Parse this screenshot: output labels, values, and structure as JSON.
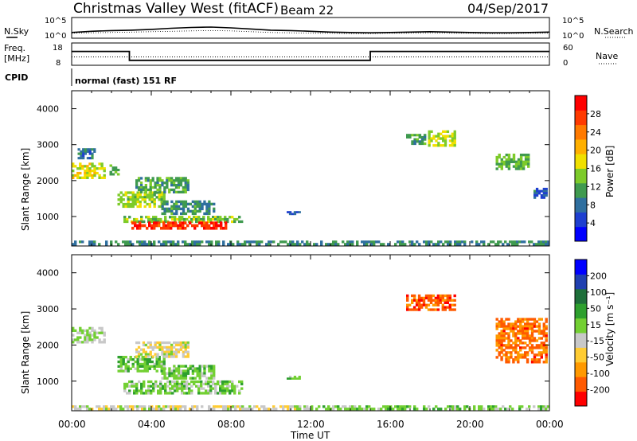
{
  "header": {
    "station": "Christmas Valley West (fitACF)",
    "beam": "Beam 22",
    "date": "04/Sep/2017"
  },
  "side_labels": {
    "nsky": "N.Sky",
    "nsearch": "N.Search",
    "freq_line1": "Freq.",
    "freq_line2": "[MHz]",
    "nave": "Nave",
    "cpid": "CPID",
    "cpid_value": "normal (fast) 151 RF"
  },
  "strip_ticks": {
    "noise_left": [
      "10^5",
      "10^0"
    ],
    "noise_right": [
      "10^5",
      "10^0"
    ],
    "freq_left": [
      "18",
      "8"
    ],
    "nave_right": [
      "60",
      "0"
    ]
  },
  "colors": {
    "power_scale": [
      "#0000ff",
      "#1e3fd0",
      "#2f6f9f",
      "#3f9a4f",
      "#7dcb2a",
      "#f0e000",
      "#ffb000",
      "#ff7a00",
      "#ff3a00",
      "#ff0000"
    ],
    "velocity_scale": [
      "#ff0000",
      "#ff5a00",
      "#ff9900",
      "#ffcc33",
      "#c8c8c8",
      "#73d033",
      "#2ea02e",
      "#1e6f3a",
      "#2040b0",
      "#0000ff"
    ]
  },
  "chart_data": [
    {
      "type": "line",
      "title": "N.Sky",
      "x": [
        0,
        1,
        2,
        3,
        4,
        5,
        6,
        7,
        8,
        9,
        10,
        11,
        12,
        13,
        14,
        15,
        16,
        17,
        18,
        19,
        20,
        21,
        22,
        23,
        24
      ],
      "series": [
        {
          "name": "N.Sky",
          "values": [
            1.3,
            1.6,
            1.8,
            1.9,
            2.1,
            2.4,
            2.6,
            2.7,
            2.5,
            2.2,
            1.9,
            1.8,
            1.6,
            1.4,
            1.3,
            1.2,
            1.3,
            1.4,
            1.5,
            1.4,
            1.3,
            1.2,
            1.2,
            1.3,
            1.4
          ]
        },
        {
          "name": "N.Search",
          "values": [
            1.1,
            1.2,
            1.3,
            1.4,
            1.5,
            1.6,
            1.7,
            1.8,
            1.7,
            1.5,
            1.3,
            1.2,
            1.1,
            1.1,
            1.0,
            1.0,
            1.1,
            1.1,
            1.2,
            1.1,
            1.1,
            1.0,
            1.0,
            1.1,
            1.1
          ]
        }
      ],
      "ylabel": "",
      "ylim": [
        0,
        5
      ]
    },
    {
      "type": "line",
      "title": "Freq. [MHz] / Nave",
      "x": [
        0,
        2.9,
        2.9,
        15.0,
        15.0,
        24
      ],
      "series": [
        {
          "name": "Freq.",
          "values": [
            14.3,
            14.3,
            10.0,
            10.0,
            14.3,
            14.3
          ]
        },
        {
          "name": "Nave",
          "values": [
            22,
            22,
            22,
            22,
            22,
            22
          ]
        }
      ],
      "ylim": [
        8,
        18
      ]
    },
    {
      "type": "heatmap",
      "title": "Power",
      "xlabel": "",
      "ylabel": "Slant Range [km]",
      "xlim": [
        0,
        24
      ],
      "ylim": [
        180,
        4500
      ],
      "x_ticks": [
        "00:00",
        "04:00",
        "08:00",
        "12:00",
        "16:00",
        "20:00",
        "00:00"
      ],
      "y_ticks": [
        "1000",
        "2000",
        "3000",
        "4000"
      ],
      "colorbar_label": "Power [dB]",
      "colorbar_ticks": [
        "4",
        "8",
        "12",
        "16",
        "20",
        "24",
        "28"
      ],
      "colorbar_range": [
        0,
        30
      ],
      "blobs": [
        {
          "t0": 0.0,
          "t1": 1.7,
          "r0": 2050,
          "r1": 2500,
          "v": 16
        },
        {
          "t0": 0.3,
          "t1": 1.2,
          "r0": 2600,
          "r1": 2900,
          "v": 8
        },
        {
          "t0": 1.9,
          "t1": 2.4,
          "r0": 2150,
          "r1": 2450,
          "v": 12
        },
        {
          "t0": 2.3,
          "t1": 4.7,
          "r0": 1250,
          "r1": 1700,
          "v": 14
        },
        {
          "t0": 3.2,
          "t1": 5.9,
          "r0": 1650,
          "r1": 2100,
          "v": 11
        },
        {
          "t0": 4.5,
          "t1": 7.2,
          "r0": 1050,
          "r1": 1450,
          "v": 10
        },
        {
          "t0": 2.6,
          "t1": 8.6,
          "r0": 830,
          "r1": 1020,
          "v": 13
        },
        {
          "t0": 3.0,
          "t1": 7.8,
          "r0": 640,
          "r1": 860,
          "v": 26
        },
        {
          "t0": 10.8,
          "t1": 11.5,
          "r0": 1050,
          "r1": 1150,
          "v": 6
        },
        {
          "t0": 16.8,
          "t1": 17.8,
          "r0": 3000,
          "r1": 3300,
          "v": 11
        },
        {
          "t0": 17.9,
          "t1": 19.3,
          "r0": 2950,
          "r1": 3400,
          "v": 15
        },
        {
          "t0": 21.3,
          "t1": 23.0,
          "r0": 2300,
          "r1": 2750,
          "v": 12
        },
        {
          "t0": 23.2,
          "t1": 23.9,
          "r0": 1500,
          "r1": 1800,
          "v": 7
        },
        {
          "t0": 0.0,
          "t1": 24.0,
          "r0": 200,
          "r1": 330,
          "v": 9
        }
      ]
    },
    {
      "type": "heatmap",
      "title": "Velocity",
      "xlabel": "Time UT",
      "ylabel": "Slant Range [km]",
      "xlim": [
        0,
        24
      ],
      "ylim": [
        180,
        4500
      ],
      "x_ticks": [
        "00:00",
        "04:00",
        "08:00",
        "12:00",
        "16:00",
        "20:00",
        "00:00"
      ],
      "y_ticks": [
        "1000",
        "2000",
        "3000",
        "4000"
      ],
      "colorbar_label": "Velocity [m s⁻¹]",
      "colorbar_ticks": [
        "200",
        "100",
        "50",
        "15",
        "-15",
        "-50",
        "-100",
        "-200"
      ],
      "colorbar_range": [
        -250,
        250
      ],
      "blobs": [
        {
          "t0": 0.0,
          "t1": 1.7,
          "r0": 2050,
          "r1": 2500,
          "v": 0
        },
        {
          "t0": 2.3,
          "t1": 4.7,
          "r0": 1250,
          "r1": 1700,
          "v": 40
        },
        {
          "t0": 3.2,
          "t1": 5.9,
          "r0": 1650,
          "r1": 2100,
          "v": -30
        },
        {
          "t0": 4.5,
          "t1": 7.2,
          "r0": 1050,
          "r1": 1450,
          "v": 30
        },
        {
          "t0": 2.6,
          "t1": 8.6,
          "r0": 640,
          "r1": 1020,
          "v": 25
        },
        {
          "t0": 10.8,
          "t1": 11.5,
          "r0": 1050,
          "r1": 1150,
          "v": 40
        },
        {
          "t0": 16.8,
          "t1": 19.3,
          "r0": 2950,
          "r1": 3400,
          "v": -180
        },
        {
          "t0": 21.3,
          "t1": 23.9,
          "r0": 1500,
          "r1": 2750,
          "v": -160
        },
        {
          "t0": 0.0,
          "t1": 12.0,
          "r0": 200,
          "r1": 330,
          "v": -30
        },
        {
          "t0": 12.0,
          "t1": 24.0,
          "r0": 200,
          "r1": 330,
          "v": 30
        }
      ]
    }
  ]
}
